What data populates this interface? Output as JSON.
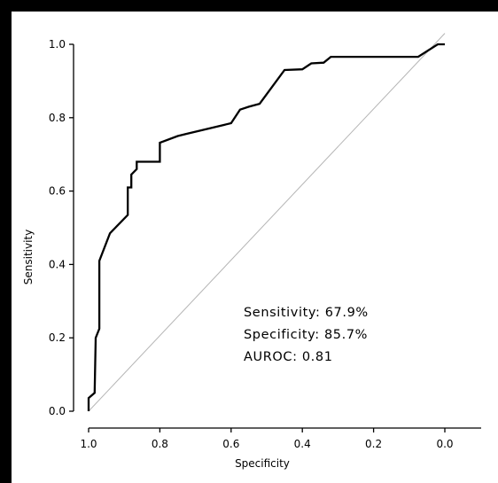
{
  "chart_data": {
    "type": "line",
    "title": "",
    "xlabel": "Specificity",
    "ylabel": "Sensitivity",
    "xlim": [
      1.0,
      0.0
    ],
    "ylim": [
      0.0,
      1.0
    ],
    "x_reversed": true,
    "grid": false,
    "x_ticks": [
      "1.0",
      "0.8",
      "0.6",
      "0.4",
      "0.2",
      "0.0"
    ],
    "y_ticks": [
      "0.0",
      "0.2",
      "0.4",
      "0.6",
      "0.8",
      "1.0"
    ],
    "series": [
      {
        "kind": "roc-curve",
        "color": "#000000",
        "points": [
          [
            1.0,
            0.0
          ],
          [
            1.0,
            0.036
          ],
          [
            0.983,
            0.05
          ],
          [
            0.98,
            0.2
          ],
          [
            0.97,
            0.225
          ],
          [
            0.97,
            0.41
          ],
          [
            0.94,
            0.485
          ],
          [
            0.89,
            0.535
          ],
          [
            0.89,
            0.61
          ],
          [
            0.88,
            0.61
          ],
          [
            0.88,
            0.645
          ],
          [
            0.865,
            0.66
          ],
          [
            0.865,
            0.68
          ],
          [
            0.8,
            0.68
          ],
          [
            0.8,
            0.732
          ],
          [
            0.75,
            0.75
          ],
          [
            0.725,
            0.756
          ],
          [
            0.6,
            0.785
          ],
          [
            0.575,
            0.822
          ],
          [
            0.55,
            0.83
          ],
          [
            0.52,
            0.838
          ],
          [
            0.45,
            0.93
          ],
          [
            0.4,
            0.932
          ],
          [
            0.375,
            0.948
          ],
          [
            0.34,
            0.95
          ],
          [
            0.32,
            0.966
          ],
          [
            0.075,
            0.966
          ],
          [
            0.02,
            1.0
          ],
          [
            0.0,
            1.0
          ]
        ]
      },
      {
        "kind": "reference-diagonal",
        "color": "#b5b5b5",
        "points": [
          [
            1.0,
            0.0
          ],
          [
            0.0,
            1.03
          ]
        ]
      }
    ],
    "annotations": [
      "Sensitivity: 67.9%",
      "Specificity: 85.7%",
      "AUROC: 0.81"
    ]
  }
}
